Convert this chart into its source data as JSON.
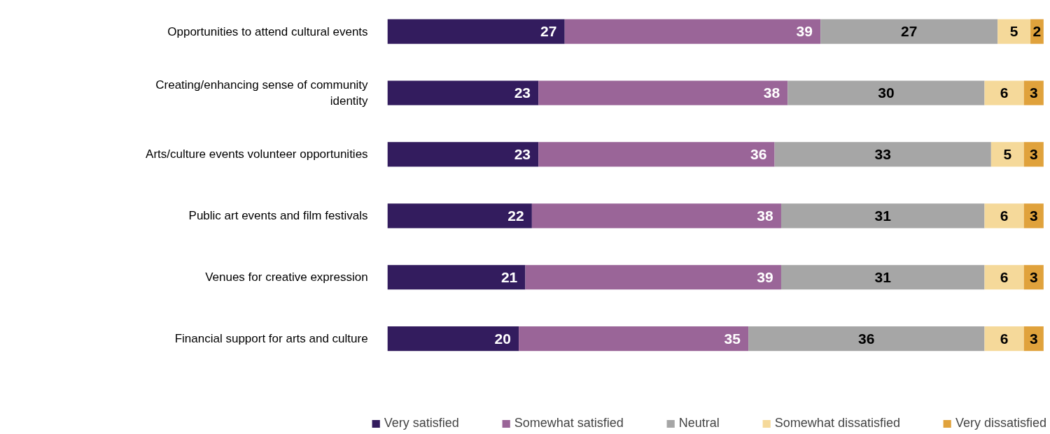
{
  "chart_data": {
    "type": "bar",
    "orientation": "horizontal",
    "stacked": true,
    "data_labels": true,
    "legend": "bottom",
    "grid": false,
    "categories": [
      "Opportunities to attend cultural events",
      "Creating/enhancing sense of community identity",
      "Arts/culture events volunteer opportunities",
      "Public art events and film festivals",
      "Venues for creative expression",
      "Financial support for arts and culture"
    ],
    "series": [
      {
        "name": "Very satisfied",
        "color": "#331c5e",
        "values": [
          27,
          23,
          23,
          22,
          21,
          20
        ]
      },
      {
        "name": "Somewhat satisfied",
        "color": "#9a6598",
        "values": [
          39,
          38,
          36,
          38,
          39,
          35
        ]
      },
      {
        "name": "Neutral",
        "color": "#a6a6a6",
        "values": [
          27,
          30,
          33,
          31,
          31,
          36
        ]
      },
      {
        "name": "Somewhat dissatisfied",
        "color": "#f5d99a",
        "values": [
          5,
          6,
          5,
          6,
          6,
          6
        ]
      },
      {
        "name": "Very dissatisfied",
        "color": "#e0a23c",
        "values": [
          2,
          3,
          3,
          3,
          3,
          3
        ]
      }
    ]
  }
}
